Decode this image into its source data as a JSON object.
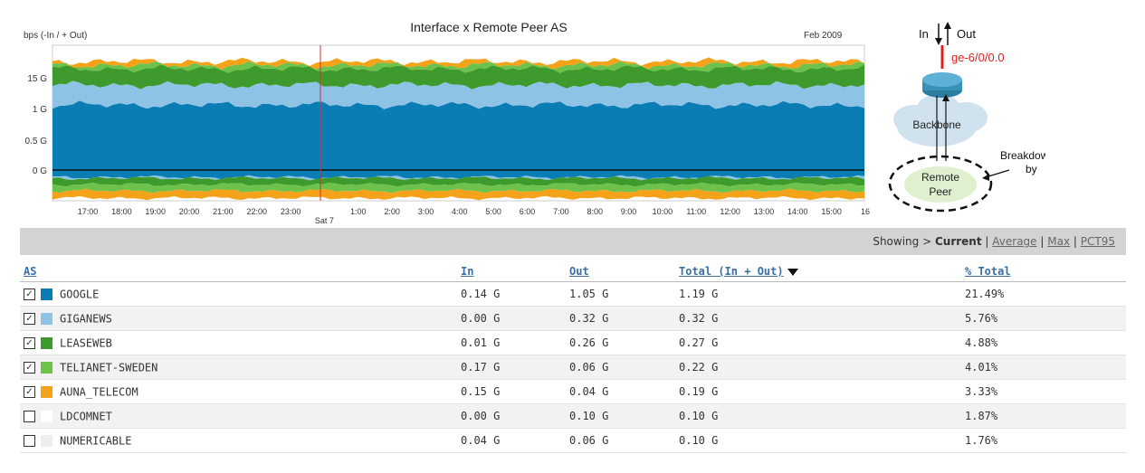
{
  "chart_data": {
    "type": "area",
    "title": "Interface x Remote Peer AS",
    "date_label": "Feb 2009",
    "ylabel": "bps (-In / + Out)",
    "y_ticks": [
      "15 G",
      "1 G",
      "0.5 G",
      "0 G"
    ],
    "x_ticks": [
      "17:00",
      "18:00",
      "19:00",
      "20:00",
      "21:00",
      "22:00",
      "23:00",
      "Sat 7",
      "1:00",
      "2:00",
      "3:00",
      "4:00",
      "5:00",
      "6:00",
      "7:00",
      "8:00",
      "9:00",
      "10:00",
      "11:00",
      "12:00",
      "13:00",
      "14:00",
      "15:00",
      "16"
    ],
    "series": [
      {
        "name": "GOOGLE",
        "color": "#0a7db5",
        "out": 1.05,
        "in": 0.14
      },
      {
        "name": "GIGANEWS",
        "color": "#8ec3e6",
        "out": 0.32,
        "in": 0.0
      },
      {
        "name": "LEASEWEB",
        "color": "#3e9a2d",
        "out": 0.26,
        "in": 0.01
      },
      {
        "name": "TELIANET-SWEDEN",
        "color": "#6cc24a",
        "out": 0.06,
        "in": 0.17
      },
      {
        "name": "AUNA_TELECOM",
        "color": "#f5a21b",
        "out": 0.04,
        "in": 0.15
      }
    ]
  },
  "diagram": {
    "in_label": "In",
    "out_label": "Out",
    "interface": "ge-6/0/0.0",
    "backbone": "Backbone",
    "breakdown": "Breakdown\nby",
    "remote_peer": "Remote\nPeer"
  },
  "toolbar": {
    "showing": "Showing >",
    "current": "Current",
    "average": "Average",
    "max": "Max",
    "pct95": "PCT95",
    "sep": "|"
  },
  "table": {
    "headers": {
      "as": "AS",
      "in": "In",
      "out": "Out",
      "total": "Total (In + Out)",
      "pct": "% Total"
    },
    "rows": [
      {
        "name": "GOOGLE",
        "color": "#0a7db5",
        "checked": true,
        "in": "0.14 G",
        "out": "1.05 G",
        "total": "1.19 G",
        "pct": "21.49%"
      },
      {
        "name": "GIGANEWS",
        "color": "#8ec3e6",
        "checked": true,
        "in": "0.00 G",
        "out": "0.32 G",
        "total": "0.32 G",
        "pct": "5.76%"
      },
      {
        "name": "LEASEWEB",
        "color": "#3e9a2d",
        "checked": true,
        "in": "0.01 G",
        "out": "0.26 G",
        "total": "0.27 G",
        "pct": "4.88%"
      },
      {
        "name": "TELIANET-SWEDEN",
        "color": "#6cc24a",
        "checked": true,
        "in": "0.17 G",
        "out": "0.06 G",
        "total": "0.22 G",
        "pct": "4.01%"
      },
      {
        "name": "AUNA_TELECOM",
        "color": "#f5a21b",
        "checked": true,
        "in": "0.15 G",
        "out": "0.04 G",
        "total": "0.19 G",
        "pct": "3.33%"
      },
      {
        "name": "LDCOMNET",
        "color": "#ffffff",
        "checked": false,
        "in": "0.00 G",
        "out": "0.10 G",
        "total": "0.10 G",
        "pct": "1.87%"
      },
      {
        "name": "NUMERICABLE",
        "color": "#eeeeee",
        "checked": false,
        "in": "0.04 G",
        "out": "0.06 G",
        "total": "0.10 G",
        "pct": "1.76%"
      }
    ]
  }
}
